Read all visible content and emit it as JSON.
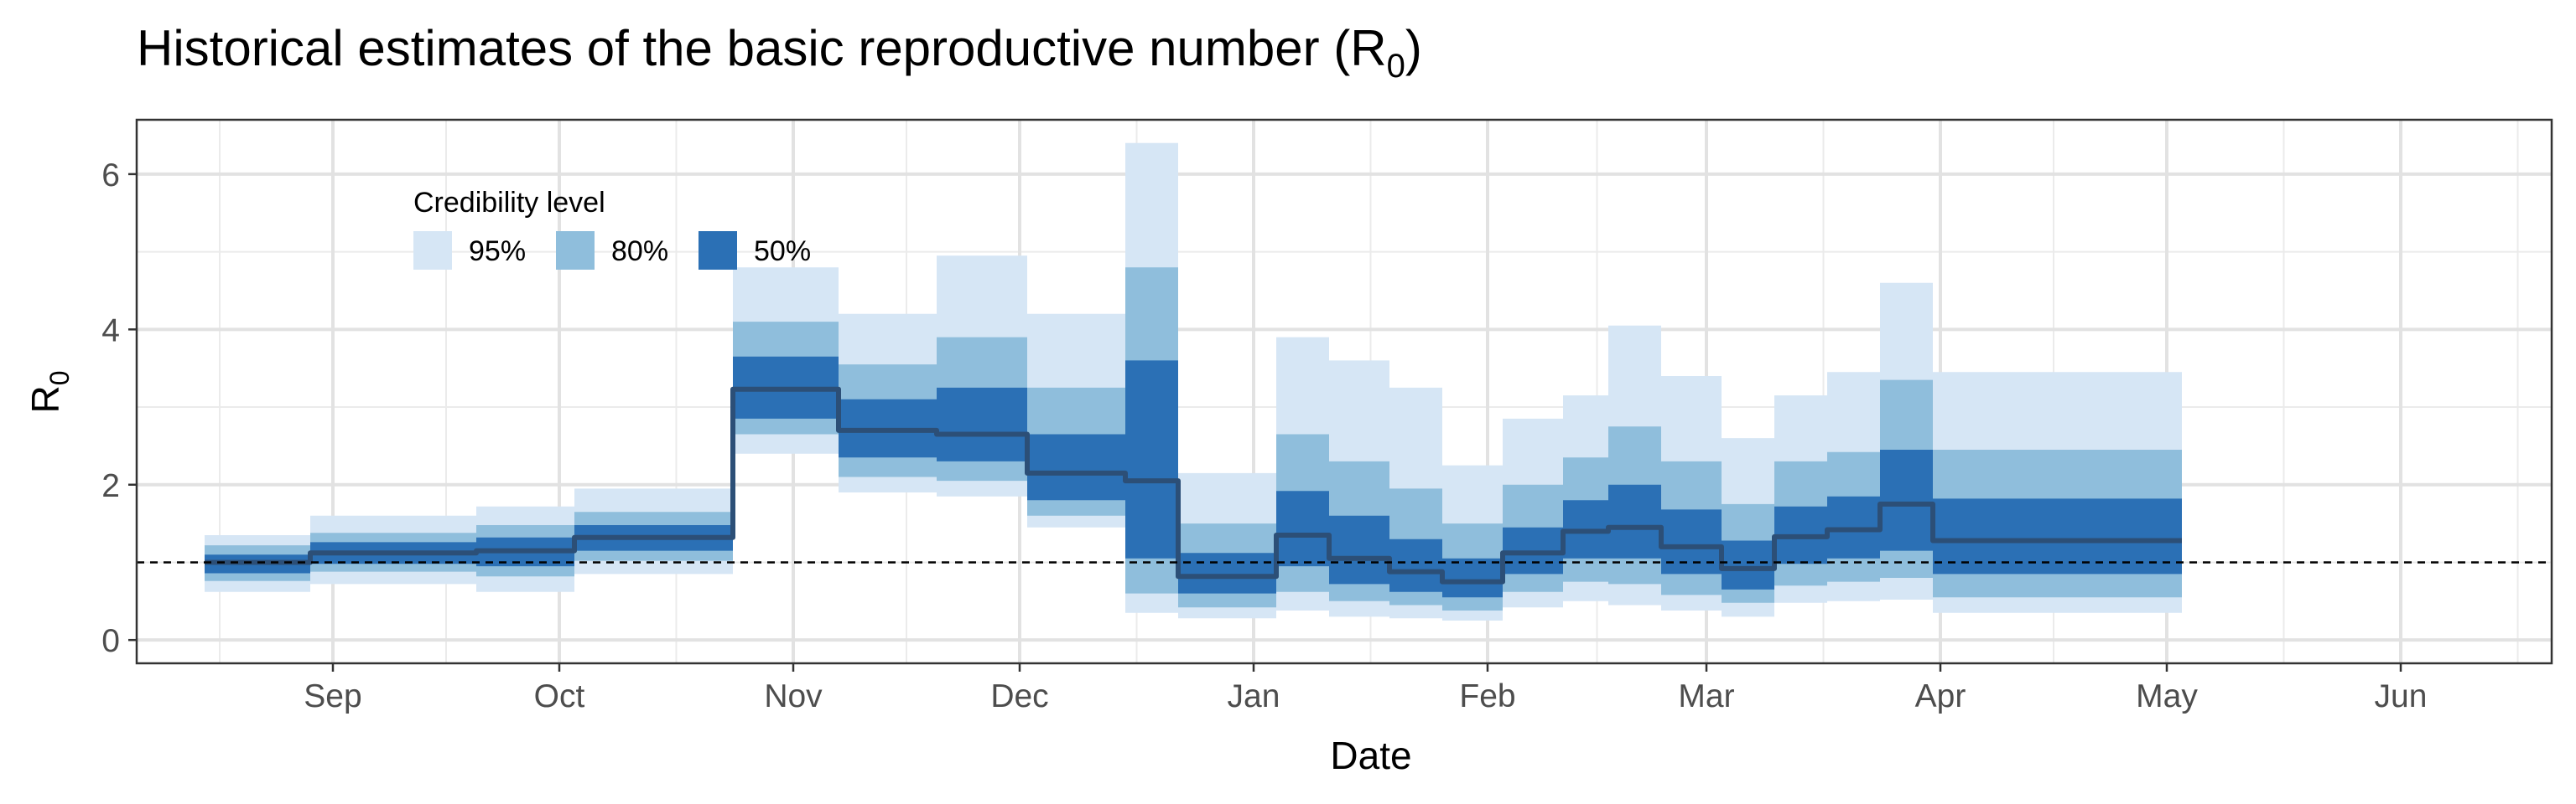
{
  "chart_data": {
    "type": "area",
    "title_text": "Historical estimates of the basic reproductive number (R",
    "title_sub": "0",
    "title_end": ")",
    "xlabel": "Date",
    "ylabel_main": "R",
    "ylabel_sub": "0",
    "x_axis_type": "date",
    "xlim": [
      "2023-08-06",
      "2024-06-21"
    ],
    "ylim": [
      -0.3,
      6.7
    ],
    "x_ticks": [
      {
        "date": "2023-09-01",
        "label": "Sep"
      },
      {
        "date": "2023-10-01",
        "label": "Oct"
      },
      {
        "date": "2023-11-01",
        "label": "Nov"
      },
      {
        "date": "2023-12-01",
        "label": "Dec"
      },
      {
        "date": "2024-01-01",
        "label": "Jan"
      },
      {
        "date": "2024-02-01",
        "label": "Feb"
      },
      {
        "date": "2024-03-01",
        "label": "Mar"
      },
      {
        "date": "2024-04-01",
        "label": "Apr"
      },
      {
        "date": "2024-05-01",
        "label": "May"
      },
      {
        "date": "2024-06-01",
        "label": "Jun"
      }
    ],
    "y_ticks": [
      0,
      2,
      4,
      6
    ],
    "grid": true,
    "reference_line": 1,
    "legend": {
      "title": "Credibility level",
      "placement": "top-left",
      "items": [
        {
          "label": "95%",
          "color": "#d6e6f5"
        },
        {
          "label": "80%",
          "color": "#8fbedc"
        },
        {
          "label": "50%",
          "color": "#2b70b5"
        }
      ]
    },
    "median_color": "#2c4f77",
    "series": [
      {
        "start": "2023-08-15",
        "end": "2023-08-29",
        "median": 1.0,
        "lo95": 0.62,
        "hi95": 1.35,
        "lo80": 0.76,
        "hi80": 1.22,
        "lo50": 0.86,
        "hi50": 1.1
      },
      {
        "start": "2023-08-29",
        "end": "2023-09-20",
        "median": 1.12,
        "lo95": 0.72,
        "hi95": 1.6,
        "lo80": 0.88,
        "hi80": 1.38,
        "lo50": 0.98,
        "hi50": 1.26
      },
      {
        "start": "2023-09-20",
        "end": "2023-10-03",
        "median": 1.15,
        "lo95": 0.62,
        "hi95": 1.72,
        "lo80": 0.82,
        "hi80": 1.48,
        "lo50": 0.95,
        "hi50": 1.32
      },
      {
        "start": "2023-10-03",
        "end": "2023-10-24",
        "median": 1.32,
        "lo95": 0.85,
        "hi95": 1.95,
        "lo80": 1.02,
        "hi80": 1.65,
        "lo50": 1.15,
        "hi50": 1.48
      },
      {
        "start": "2023-10-24",
        "end": "2023-11-07",
        "median": 3.23,
        "lo95": 2.4,
        "hi95": 4.8,
        "lo80": 2.65,
        "hi80": 4.1,
        "lo50": 2.85,
        "hi50": 3.65
      },
      {
        "start": "2023-11-07",
        "end": "2023-11-20",
        "median": 2.7,
        "lo95": 1.9,
        "hi95": 4.2,
        "lo80": 2.1,
        "hi80": 3.55,
        "lo50": 2.35,
        "hi50": 3.1
      },
      {
        "start": "2023-11-20",
        "end": "2023-12-02",
        "median": 2.65,
        "lo95": 1.85,
        "hi95": 4.95,
        "lo80": 2.05,
        "hi80": 3.9,
        "lo50": 2.3,
        "hi50": 3.25
      },
      {
        "start": "2023-12-02",
        "end": "2023-12-15",
        "median": 2.15,
        "lo95": 1.45,
        "hi95": 4.2,
        "lo80": 1.6,
        "hi80": 3.25,
        "lo50": 1.8,
        "hi50": 2.65
      },
      {
        "start": "2023-12-15",
        "end": "2023-12-22",
        "median": 2.05,
        "lo95": 0.35,
        "hi95": 6.4,
        "lo80": 0.6,
        "hi80": 4.8,
        "lo50": 1.05,
        "hi50": 3.6
      },
      {
        "start": "2023-12-22",
        "end": "2024-01-04",
        "median": 0.82,
        "lo95": 0.28,
        "hi95": 2.15,
        "lo80": 0.42,
        "hi80": 1.5,
        "lo50": 0.6,
        "hi50": 1.12
      },
      {
        "start": "2024-01-04",
        "end": "2024-01-11",
        "median": 1.35,
        "lo95": 0.38,
        "hi95": 3.9,
        "lo80": 0.62,
        "hi80": 2.65,
        "lo50": 0.95,
        "hi50": 1.92
      },
      {
        "start": "2024-01-11",
        "end": "2024-01-19",
        "median": 1.05,
        "lo95": 0.3,
        "hi95": 3.6,
        "lo80": 0.5,
        "hi80": 2.3,
        "lo50": 0.72,
        "hi50": 1.6
      },
      {
        "start": "2024-01-19",
        "end": "2024-01-26",
        "median": 0.88,
        "lo95": 0.28,
        "hi95": 3.25,
        "lo80": 0.45,
        "hi80": 1.95,
        "lo50": 0.62,
        "hi50": 1.3
      },
      {
        "start": "2024-01-26",
        "end": "2024-02-03",
        "median": 0.75,
        "lo95": 0.25,
        "hi95": 2.25,
        "lo80": 0.38,
        "hi80": 1.5,
        "lo50": 0.55,
        "hi50": 1.05
      },
      {
        "start": "2024-02-03",
        "end": "2024-02-11",
        "median": 1.12,
        "lo95": 0.42,
        "hi95": 2.85,
        "lo80": 0.62,
        "hi80": 2.0,
        "lo50": 0.85,
        "hi50": 1.45
      },
      {
        "start": "2024-02-11",
        "end": "2024-02-17",
        "median": 1.4,
        "lo95": 0.5,
        "hi95": 3.15,
        "lo80": 0.75,
        "hi80": 2.35,
        "lo50": 1.05,
        "hi50": 1.8
      },
      {
        "start": "2024-02-17",
        "end": "2024-02-24",
        "median": 1.45,
        "lo95": 0.45,
        "hi95": 4.05,
        "lo80": 0.72,
        "hi80": 2.75,
        "lo50": 1.05,
        "hi50": 2.0
      },
      {
        "start": "2024-02-24",
        "end": "2024-03-03",
        "median": 1.2,
        "lo95": 0.38,
        "hi95": 3.4,
        "lo80": 0.58,
        "hi80": 2.3,
        "lo50": 0.85,
        "hi50": 1.68
      },
      {
        "start": "2024-03-03",
        "end": "2024-03-10",
        "median": 0.92,
        "lo95": 0.3,
        "hi95": 2.6,
        "lo80": 0.48,
        "hi80": 1.75,
        "lo50": 0.65,
        "hi50": 1.28
      },
      {
        "start": "2024-03-10",
        "end": "2024-03-17",
        "median": 1.33,
        "lo95": 0.48,
        "hi95": 3.15,
        "lo80": 0.7,
        "hi80": 2.3,
        "lo50": 0.98,
        "hi50": 1.72
      },
      {
        "start": "2024-03-17",
        "end": "2024-03-24",
        "median": 1.42,
        "lo95": 0.5,
        "hi95": 3.45,
        "lo80": 0.75,
        "hi80": 2.42,
        "lo50": 1.05,
        "hi50": 1.85
      },
      {
        "start": "2024-03-24",
        "end": "2024-03-31",
        "median": 1.75,
        "lo95": 0.52,
        "hi95": 4.6,
        "lo80": 0.8,
        "hi80": 3.35,
        "lo50": 1.15,
        "hi50": 2.45
      },
      {
        "start": "2024-03-31",
        "end": "2024-05-03",
        "median": 1.28,
        "lo95": 0.35,
        "hi95": 3.45,
        "lo80": 0.55,
        "hi80": 2.45,
        "lo50": 0.85,
        "hi50": 1.82
      }
    ]
  }
}
